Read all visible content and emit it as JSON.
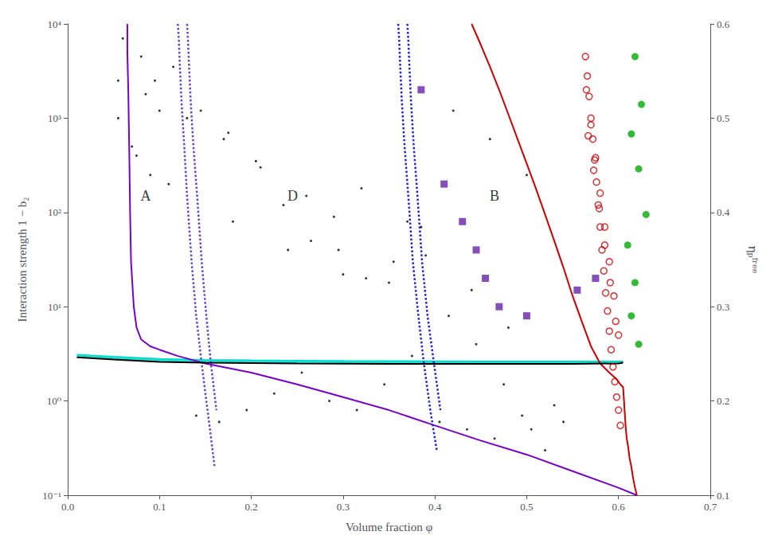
{
  "chart_data": {
    "type": "line",
    "xlabel": "Volume fraction φ",
    "ylabel": "Interaction strength 1 − b₂",
    "y2label": "ηₚᶠʳᵉᵉ",
    "log": "y",
    "grid": false,
    "xlim": [
      0,
      0.7
    ],
    "xticks": [
      {
        "value": 0,
        "label": "0.0"
      },
      0.1,
      0.2,
      0.3,
      0.4,
      0.5,
      0.6,
      0.7
    ],
    "ylim": [
      0.1,
      10000
    ],
    "yticks": [
      {
        "value": 0.1,
        "label": "10⁻¹"
      },
      {
        "value": 1,
        "label": "10⁰"
      },
      {
        "value": 10,
        "label": "10¹"
      },
      {
        "value": 100,
        "label": "10²"
      },
      {
        "value": 1000,
        "label": "10³"
      },
      {
        "value": 10000,
        "label": "10⁴"
      }
    ],
    "y2lim": [
      0.1,
      0.6
    ],
    "y2ticks": [
      0.1,
      0.2,
      0.3,
      0.4,
      0.5,
      0.6
    ],
    "annotations": [
      {
        "text": "A",
        "x": 0.085,
        "y": 150
      },
      {
        "text": "D",
        "x": 0.245,
        "y": 150
      },
      {
        "text": "B",
        "x": 0.465,
        "y": 150
      }
    ],
    "series": [
      {
        "type": "band",
        "color": "#00ddcc",
        "x": [
          0.01,
          0.05,
          0.1,
          0.15,
          0.2,
          0.25,
          0.3,
          0.35,
          0.4,
          0.45,
          0.5,
          0.55,
          0.6,
          0.605
        ],
        "lower": [
          2.9,
          2.75,
          2.6,
          2.55,
          2.52,
          2.5,
          2.49,
          2.48,
          2.47,
          2.47,
          2.47,
          2.47,
          2.5,
          2.55
        ],
        "upper": [
          3.1,
          2.95,
          2.8,
          2.73,
          2.7,
          2.68,
          2.66,
          2.65,
          2.64,
          2.63,
          2.63,
          2.63,
          2.63,
          2.63
        ]
      },
      {
        "type": "line",
        "color": "#000000",
        "line_style": "solid",
        "x": [
          0.01,
          0.05,
          0.1,
          0.15,
          0.2,
          0.25,
          0.3,
          0.35,
          0.4,
          0.45,
          0.5,
          0.55,
          0.6,
          0.605
        ],
        "values": [
          2.9,
          2.75,
          2.6,
          2.55,
          2.52,
          2.5,
          2.49,
          2.48,
          2.47,
          2.47,
          2.47,
          2.47,
          2.5,
          2.55
        ]
      },
      {
        "type": "line",
        "color": "#00ddcc",
        "line_style": "solid",
        "x": [
          0.01,
          0.05,
          0.1,
          0.15,
          0.2,
          0.25,
          0.3,
          0.35,
          0.4,
          0.45,
          0.5,
          0.55,
          0.6,
          0.605
        ],
        "values": [
          3.1,
          2.95,
          2.8,
          2.73,
          2.7,
          2.68,
          2.66,
          2.65,
          2.64,
          2.63,
          2.63,
          2.63,
          2.63,
          2.63
        ]
      },
      {
        "type": "line",
        "color": "#7700cc",
        "line_style": "solid",
        "x": [
          0.065,
          0.065,
          0.065,
          0.066,
          0.067,
          0.068,
          0.069,
          0.072,
          0.075,
          0.08,
          0.09,
          0.1,
          0.12,
          0.15,
          0.2,
          0.25,
          0.3,
          0.35,
          0.4,
          0.45,
          0.5,
          0.55,
          0.6,
          0.62
        ],
        "values": [
          10000,
          8000,
          5000,
          2000,
          500,
          100,
          30,
          10,
          6.0,
          4.5,
          3.8,
          3.5,
          3.0,
          2.5,
          2.0,
          1.5,
          1.1,
          0.8,
          0.55,
          0.38,
          0.27,
          0.18,
          0.12,
          0.1
        ]
      },
      {
        "type": "line",
        "color": "#6644cc",
        "line_style": "dotted",
        "x": [
          0.12,
          0.121,
          0.122,
          0.124,
          0.127,
          0.13,
          0.135,
          0.14,
          0.145,
          0.15,
          0.155,
          0.16
        ],
        "values": [
          10000,
          7000,
          4000,
          1500,
          500,
          150,
          30,
          8,
          3,
          1.2,
          0.5,
          0.2
        ]
      },
      {
        "type": "line",
        "color": "#6644cc",
        "line_style": "dotted",
        "x": [
          0.13,
          0.131,
          0.132,
          0.134,
          0.137,
          0.141,
          0.146,
          0.151,
          0.156,
          0.162
        ],
        "values": [
          10000,
          7000,
          4000,
          1500,
          500,
          150,
          30,
          8,
          2.5,
          0.8
        ]
      },
      {
        "type": "line",
        "color": "#2222dd",
        "line_style": "dotted",
        "x": [
          0.36,
          0.361,
          0.362,
          0.364,
          0.367,
          0.371,
          0.376,
          0.382,
          0.388,
          0.395,
          0.402
        ],
        "values": [
          10000,
          7000,
          4000,
          1500,
          500,
          150,
          30,
          8,
          2.5,
          0.8,
          0.3
        ]
      },
      {
        "type": "line",
        "color": "#2222dd",
        "line_style": "dotted",
        "x": [
          0.37,
          0.371,
          0.372,
          0.374,
          0.377,
          0.381,
          0.386,
          0.392,
          0.399,
          0.406
        ],
        "values": [
          10000,
          7000,
          4000,
          1500,
          500,
          150,
          30,
          8,
          2.5,
          0.8
        ]
      },
      {
        "type": "line",
        "color": "#cc0000",
        "line_style": "solid",
        "x": [
          0.44,
          0.45,
          0.46,
          0.47,
          0.48,
          0.49,
          0.5,
          0.51,
          0.52,
          0.53,
          0.54,
          0.55,
          0.56,
          0.57,
          0.58,
          0.59,
          0.598,
          0.602,
          0.605,
          0.606,
          0.607,
          0.608,
          0.609,
          0.61,
          0.611,
          0.612,
          0.614,
          0.616,
          0.618,
          0.62
        ],
        "values": [
          10000,
          6000,
          3500,
          2000,
          1100,
          600,
          330,
          180,
          95,
          50,
          26,
          13,
          7,
          3.8,
          2.5,
          2.0,
          1.7,
          1.5,
          1.4,
          1.0,
          0.7,
          0.5,
          0.4,
          0.35,
          0.3,
          0.25,
          0.2,
          0.15,
          0.12,
          0.1
        ]
      },
      {
        "type": "scatter",
        "color": "#000000",
        "marker": "dot",
        "x": [
          0.055,
          0.085,
          0.075,
          0.1,
          0.13,
          0.09,
          0.17,
          0.21,
          0.18,
          0.26,
          0.24,
          0.29,
          0.32,
          0.3,
          0.37,
          0.35,
          0.42,
          0.39,
          0.46,
          0.44,
          0.5,
          0.48,
          0.53,
          0.055,
          0.07,
          0.095,
          0.115,
          0.145,
          0.175,
          0.205,
          0.235,
          0.265,
          0.295,
          0.325,
          0.355,
          0.385,
          0.415,
          0.445,
          0.475,
          0.505,
          0.06,
          0.08,
          0.11,
          0.14,
          0.165,
          0.195,
          0.225,
          0.255,
          0.285,
          0.315,
          0.345,
          0.375,
          0.405,
          0.435,
          0.465,
          0.495,
          0.52,
          0.54
        ],
        "values": [
          2500,
          1800,
          400,
          1200,
          1000,
          250,
          600,
          300,
          80,
          150,
          40,
          90,
          180,
          22,
          80,
          18,
          1200,
          35,
          600,
          15,
          250,
          6,
          0.9,
          1000,
          500,
          2500,
          3500,
          1200,
          700,
          350,
          120,
          50,
          40,
          20,
          30,
          70,
          8,
          4,
          1.5,
          0.5,
          7000,
          4500,
          200,
          0.7,
          0.6,
          0.8,
          1.2,
          2.0,
          1.0,
          0.8,
          1.5,
          3,
          0.6,
          0.5,
          0.4,
          0.7,
          0.3,
          0.6
        ]
      },
      {
        "type": "scatter",
        "color": "#6622aa",
        "marker": "square",
        "x": [
          0.385,
          0.41,
          0.43,
          0.445,
          0.455,
          0.47,
          0.5,
          0.555,
          0.575
        ],
        "values": [
          2000,
          200,
          80,
          40,
          20,
          10,
          8,
          15,
          20
        ]
      },
      {
        "type": "scatter",
        "color": "#cc0000",
        "marker": "open_circle",
        "x": [
          0.564,
          0.566,
          0.568,
          0.57,
          0.572,
          0.574,
          0.576,
          0.578,
          0.58,
          0.582,
          0.584,
          0.586,
          0.588,
          0.59,
          0.592,
          0.594,
          0.596,
          0.598,
          0.6,
          0.602,
          0.565,
          0.57,
          0.575,
          0.58,
          0.585,
          0.59,
          0.595,
          0.6,
          0.567,
          0.573,
          0.579,
          0.585,
          0.591,
          0.597
        ],
        "values": [
          4500,
          2800,
          1700,
          1000,
          600,
          360,
          210,
          120,
          70,
          40,
          24,
          14,
          9,
          5.5,
          3.5,
          2.3,
          1.6,
          1.1,
          0.8,
          0.55,
          2000,
          850,
          380,
          160,
          70,
          30,
          13,
          5,
          650,
          280,
          110,
          45,
          18,
          7
        ]
      },
      {
        "type": "scatter",
        "color": "#00aa00",
        "marker": "circle",
        "x": [
          0.618,
          0.625,
          0.614,
          0.622,
          0.63,
          0.61,
          0.618,
          0.614,
          0.622
        ],
        "values": [
          4500,
          1400,
          680,
          290,
          95,
          45,
          18,
          8,
          4
        ]
      }
    ]
  }
}
